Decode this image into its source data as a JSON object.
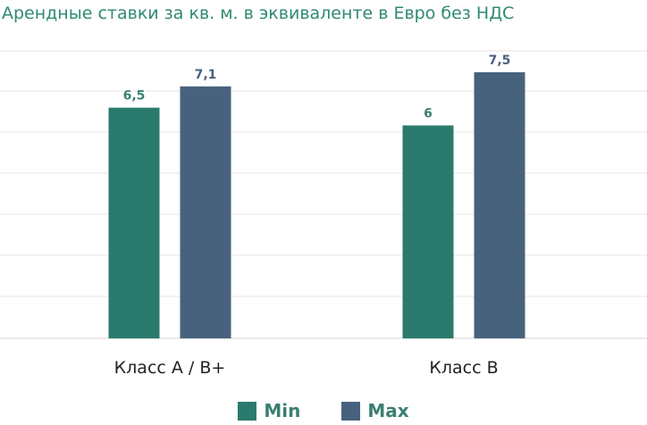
{
  "chart_data": {
    "type": "bar",
    "title": "Арендные ставки за кв. м. в эквиваленте в Евро без НДС",
    "categories": [
      "Класс А / В+",
      "Класс В"
    ],
    "series": [
      {
        "name": "Min",
        "values": [
          6.5,
          6
        ],
        "labels": [
          "6,5",
          "6"
        ],
        "color": "#2b7a6e"
      },
      {
        "name": "Max",
        "values": [
          7.1,
          7.5
        ],
        "labels": [
          "7,1",
          "7,5"
        ],
        "color": "#47627d"
      }
    ],
    "ylim": [
      0,
      8.1
    ],
    "grid": true,
    "legend": "bottom",
    "label_colors": [
      "#3b7f72",
      "#47627d"
    ]
  }
}
